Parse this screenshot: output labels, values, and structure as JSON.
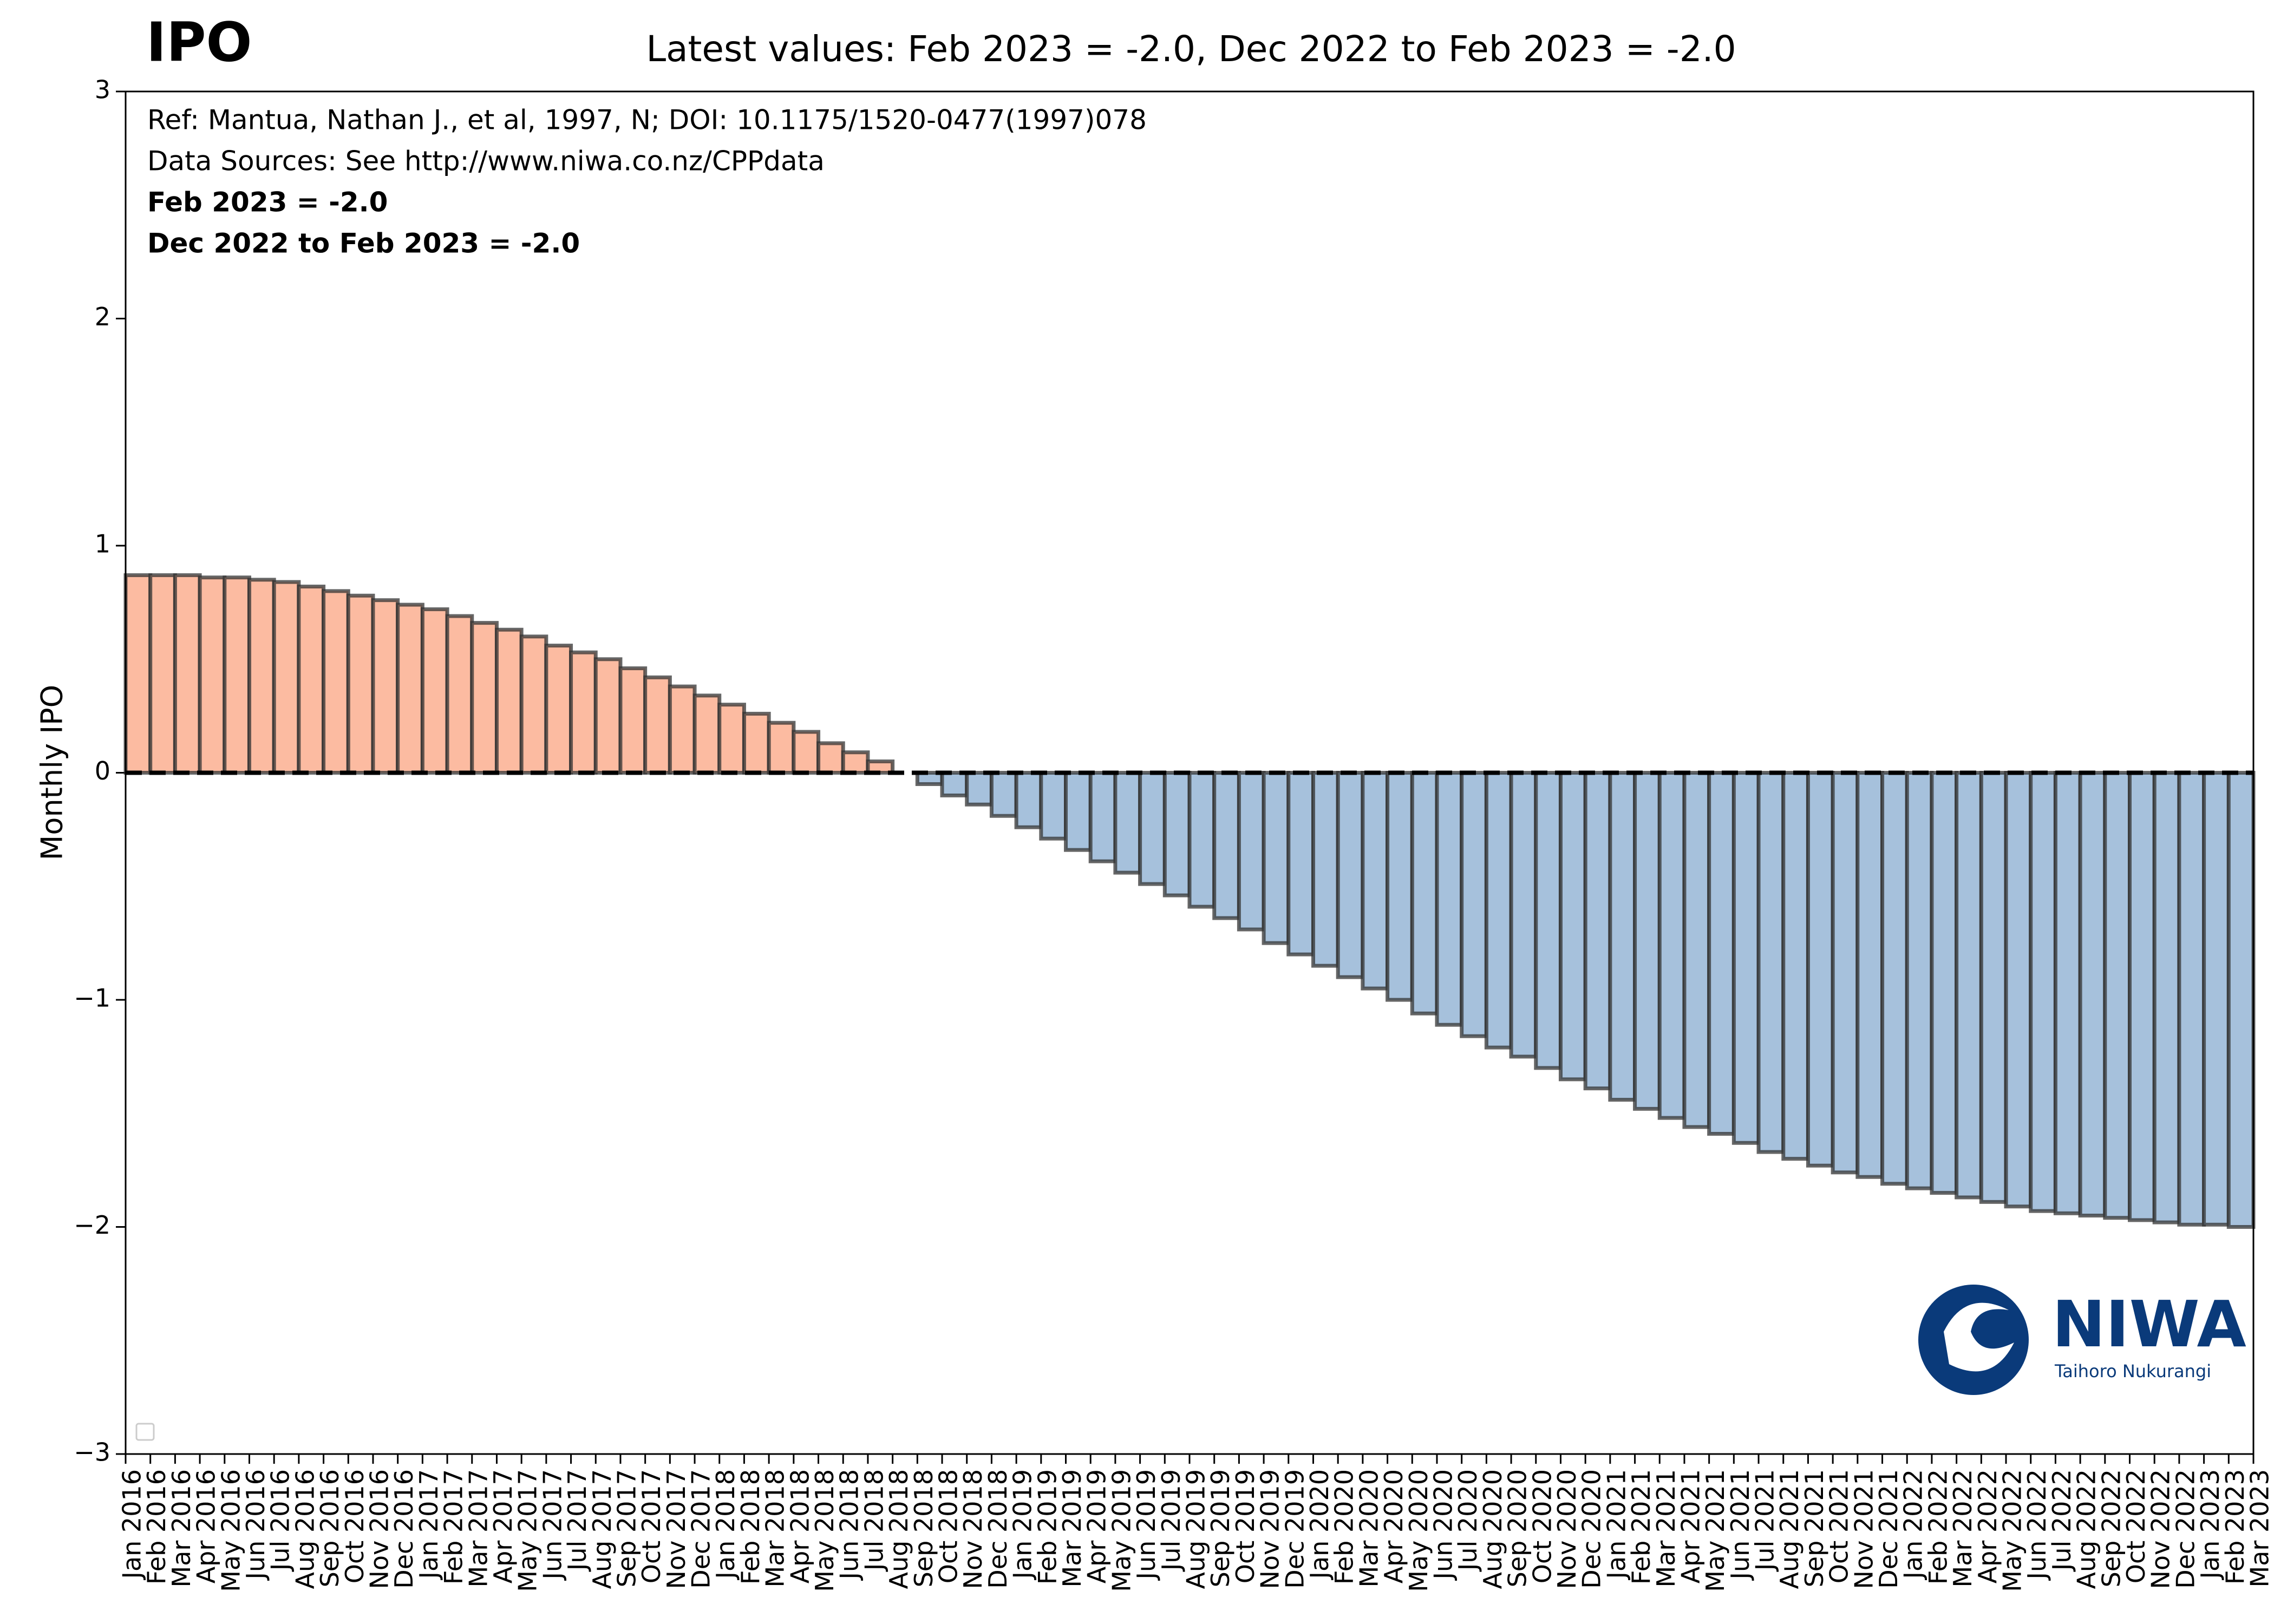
{
  "chart_data": {
    "type": "bar",
    "title": "IPO",
    "subtitle": "Latest values: Feb 2023 = -2.0, Dec 2022 to Feb 2023 = -2.0",
    "annotations": [
      "Ref: Mantua, Nathan J., et al, 1997, N; DOI: 10.1175/1520-0477(1997)078",
      "Data Sources: See http://www.niwa.co.nz/CPPdata",
      "Feb 2023 = -2.0",
      "Dec 2022 to Feb 2023 = -2.0"
    ],
    "y_label": "Monthly IPO",
    "logo": {
      "name": "NIWA",
      "tagline": "Taihoro Nukurangi"
    },
    "categories": [
      "Jan 2016",
      "Feb 2016",
      "Mar 2016",
      "Apr 2016",
      "May 2016",
      "Jun 2016",
      "Jul 2016",
      "Aug 2016",
      "Sep 2016",
      "Oct 2016",
      "Nov 2016",
      "Dec 2016",
      "Jan 2017",
      "Feb 2017",
      "Mar 2017",
      "Apr 2017",
      "May 2017",
      "Jun 2017",
      "Jul 2017",
      "Aug 2017",
      "Sep 2017",
      "Oct 2017",
      "Nov 2017",
      "Dec 2017",
      "Jan 2018",
      "Feb 2018",
      "Mar 2018",
      "Apr 2018",
      "May 2018",
      "Jun 2018",
      "Jul 2018",
      "Aug 2018",
      "Sep 2018",
      "Oct 2018",
      "Nov 2018",
      "Dec 2018",
      "Jan 2019",
      "Feb 2019",
      "Mar 2019",
      "Apr 2019",
      "May 2019",
      "Jun 2019",
      "Jul 2019",
      "Aug 2019",
      "Sep 2019",
      "Oct 2019",
      "Nov 2019",
      "Dec 2019",
      "Jan 2020",
      "Feb 2020",
      "Mar 2020",
      "Apr 2020",
      "May 2020",
      "Jun 2020",
      "Jul 2020",
      "Aug 2020",
      "Sep 2020",
      "Oct 2020",
      "Nov 2020",
      "Dec 2020",
      "Jan 2021",
      "Feb 2021",
      "Mar 2021",
      "Apr 2021",
      "May 2021",
      "Jun 2021",
      "Jul 2021",
      "Aug 2021",
      "Sep 2021",
      "Oct 2021",
      "Nov 2021",
      "Dec 2021",
      "Jan 2022",
      "Feb 2022",
      "Mar 2022",
      "Apr 2022",
      "May 2022",
      "Jun 2022",
      "Jul 2022",
      "Aug 2022",
      "Sep 2022",
      "Oct 2022",
      "Nov 2022",
      "Dec 2022",
      "Jan 2023",
      "Feb 2023",
      "Mar 2023"
    ],
    "values": [
      0.87,
      0.87,
      0.87,
      0.86,
      0.86,
      0.85,
      0.84,
      0.82,
      0.8,
      0.78,
      0.76,
      0.74,
      0.72,
      0.69,
      0.66,
      0.63,
      0.6,
      0.56,
      0.53,
      0.5,
      0.46,
      0.42,
      0.38,
      0.34,
      0.3,
      0.26,
      0.22,
      0.18,
      0.13,
      0.09,
      0.05,
      0.0,
      -0.05,
      -0.1,
      -0.14,
      -0.19,
      -0.24,
      -0.29,
      -0.34,
      -0.39,
      -0.44,
      -0.49,
      -0.54,
      -0.59,
      -0.64,
      -0.69,
      -0.75,
      -0.8,
      -0.85,
      -0.9,
      -0.95,
      -1.0,
      -1.06,
      -1.11,
      -1.16,
      -1.21,
      -1.25,
      -1.3,
      -1.35,
      -1.39,
      -1.44,
      -1.48,
      -1.52,
      -1.56,
      -1.59,
      -1.63,
      -1.67,
      -1.7,
      -1.73,
      -1.76,
      -1.78,
      -1.81,
      -1.83,
      -1.85,
      -1.87,
      -1.89,
      -1.91,
      -1.93,
      -1.94,
      -1.95,
      -1.96,
      -1.97,
      -1.98,
      -1.99,
      -1.99,
      -2.0,
      null
    ],
    "positive_color": "#fcbba1",
    "negative_color": "#a6c1dc",
    "edge_color": "#333333",
    "ylim": [
      -3,
      3
    ],
    "yticks": [
      {
        "value": -3,
        "label": "−3"
      },
      {
        "value": -2,
        "label": "−2"
      },
      {
        "value": -1,
        "label": "−1"
      },
      0,
      1,
      2,
      3
    ],
    "zero_line": true
  }
}
